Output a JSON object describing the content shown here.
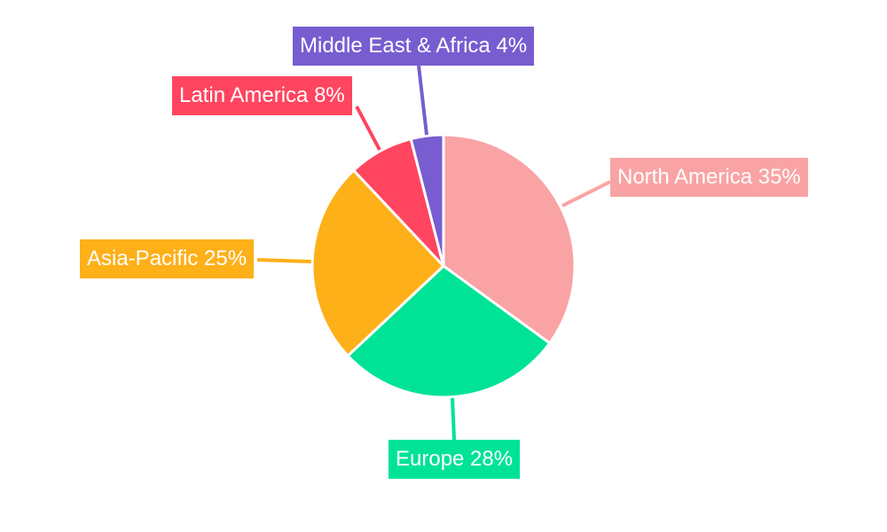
{
  "chart_data": {
    "type": "pie",
    "title": "",
    "start_angle": "top",
    "direction": "clockwise",
    "slices": [
      {
        "label": "North America",
        "value": 35,
        "text": "North America 35%",
        "color": "#F9A3A4"
      },
      {
        "label": "Europe",
        "value": 28,
        "text": "Europe 28%",
        "color": "#00E396"
      },
      {
        "label": "Asia-Pacific",
        "value": 25,
        "text": "Asia-Pacific 25%",
        "color": "#FEB019"
      },
      {
        "label": "Latin America",
        "value": 8,
        "text": "Latin America 8%",
        "color": "#FF4560"
      },
      {
        "label": "Middle East & Africa",
        "value": 4,
        "text": "Middle East & Africa 4%",
        "color": "#775DD0"
      }
    ]
  }
}
